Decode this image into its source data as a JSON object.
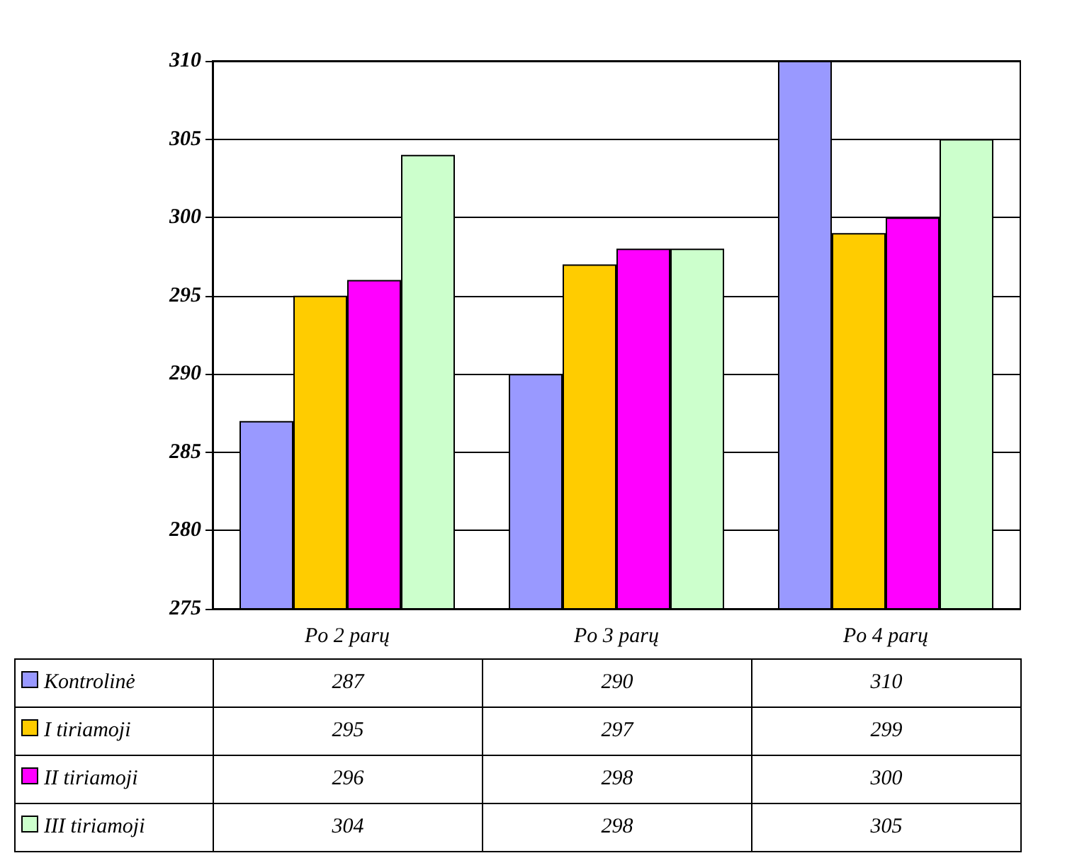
{
  "chart_data": {
    "type": "bar",
    "categories": [
      "Po 2 parų",
      "Po 3 parų",
      "Po 4 parų"
    ],
    "series": [
      {
        "name": "Kontrolinė",
        "color": "#9999ff",
        "values": [
          287,
          290,
          310
        ]
      },
      {
        "name": "I tiriamoji",
        "color": "#ffcc00",
        "values": [
          295,
          297,
          299
        ]
      },
      {
        "name": "II tiriamoji",
        "color": "#ff00ff",
        "values": [
          296,
          298,
          300
        ]
      },
      {
        "name": "III tiriamoji",
        "color": "#ccffcc",
        "values": [
          304,
          298,
          305
        ]
      }
    ],
    "ylim": [
      275,
      310
    ],
    "yticks": [
      275,
      280,
      285,
      290,
      295,
      300,
      305,
      310
    ],
    "grid": "y",
    "legend": "bottom",
    "data_labels": true
  }
}
